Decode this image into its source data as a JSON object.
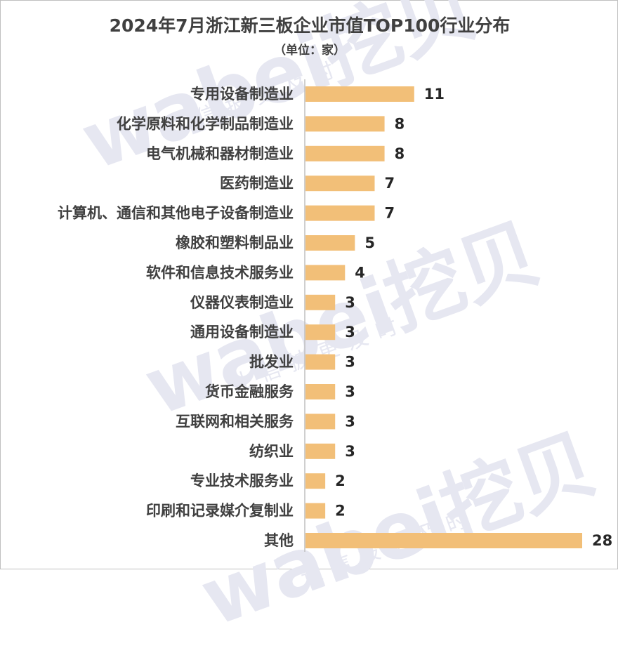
{
  "chart_data": {
    "type": "bar",
    "orientation": "horizontal",
    "title": "2024年7月浙江新三板企业市值TOP100行业分布",
    "subtitle": "（单位：家）",
    "categories": [
      "专用设备制造业",
      "化学原料和化学制品制造业",
      "电气机械和器材制造业",
      "医药制造业",
      "计算机、通信和其他电子设备制造业",
      "橡胶和塑料制品业",
      "软件和信息技术服务业",
      "仪器仪表制造业",
      "通用设备制造业",
      "批发业",
      "货币金融服务",
      "互联网和相关服务",
      "纺织业",
      "专业技术服务业",
      "印刷和记录媒介复制业",
      "其他"
    ],
    "values": [
      11,
      8,
      8,
      7,
      7,
      5,
      4,
      3,
      3,
      3,
      3,
      3,
      3,
      2,
      2,
      28
    ],
    "xlim": [
      0,
      28
    ],
    "grid": false,
    "legend": "none",
    "colors": {
      "bar": "#f2bf78",
      "axis": "#bfbfbf"
    }
  },
  "watermark": {
    "brand": "wabei挖贝",
    "slogan": "让信披更及时"
  }
}
